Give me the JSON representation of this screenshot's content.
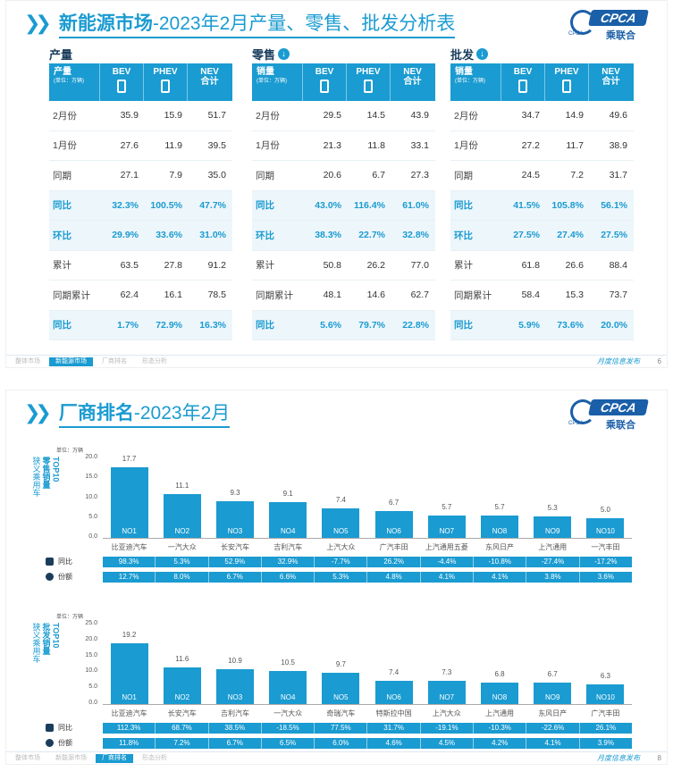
{
  "slide1": {
    "title_main": "新能源市场",
    "title_sub": "-2023年2月产量、零售、批发分析表",
    "logo": {
      "text": "CPCA",
      "cn": "乘联合",
      "small": "CPCA"
    },
    "col_headers": {
      "c0_main": "产量",
      "c0_unit": "(单位：万辆)",
      "bev": "BEV",
      "phev": "PHEV",
      "nev": "NEV",
      "nev2": "合计"
    },
    "sections": [
      {
        "name": "产量",
        "c0_main": "产量",
        "rows": [
          {
            "label": "2月份",
            "bev": "35.9",
            "phev": "15.9",
            "nev": "51.7",
            "hl": false
          },
          {
            "label": "1月份",
            "bev": "27.6",
            "phev": "11.9",
            "nev": "39.5",
            "hl": false
          },
          {
            "label": "同期",
            "bev": "27.1",
            "phev": "7.9",
            "nev": "35.0",
            "hl": false
          },
          {
            "label": "同比",
            "bev": "32.3%",
            "phev": "100.5%",
            "nev": "47.7%",
            "hl": true
          },
          {
            "label": "环比",
            "bev": "29.9%",
            "phev": "33.6%",
            "nev": "31.0%",
            "hl": true
          },
          {
            "label": "累计",
            "bev": "63.5",
            "phev": "27.8",
            "nev": "91.2",
            "hl": false
          },
          {
            "label": "同期累计",
            "bev": "62.4",
            "phev": "16.1",
            "nev": "78.5",
            "hl": false
          },
          {
            "label": "同比",
            "bev": "1.7%",
            "phev": "72.9%",
            "nev": "16.3%",
            "hl": true
          }
        ]
      },
      {
        "name": "零售",
        "c0_main": "销量",
        "rows": [
          {
            "label": "2月份",
            "bev": "29.5",
            "phev": "14.5",
            "nev": "43.9",
            "hl": false
          },
          {
            "label": "1月份",
            "bev": "21.3",
            "phev": "11.8",
            "nev": "33.1",
            "hl": false
          },
          {
            "label": "同期",
            "bev": "20.6",
            "phev": "6.7",
            "nev": "27.3",
            "hl": false
          },
          {
            "label": "同比",
            "bev": "43.0%",
            "phev": "116.4%",
            "nev": "61.0%",
            "hl": true
          },
          {
            "label": "环比",
            "bev": "38.3%",
            "phev": "22.7%",
            "nev": "32.8%",
            "hl": true
          },
          {
            "label": "累计",
            "bev": "50.8",
            "phev": "26.2",
            "nev": "77.0",
            "hl": false
          },
          {
            "label": "同期累计",
            "bev": "48.1",
            "phev": "14.6",
            "nev": "62.7",
            "hl": false
          },
          {
            "label": "同比",
            "bev": "5.6%",
            "phev": "79.7%",
            "nev": "22.8%",
            "hl": true
          }
        ]
      },
      {
        "name": "批发",
        "c0_main": "销量",
        "rows": [
          {
            "label": "2月份",
            "bev": "34.7",
            "phev": "14.9",
            "nev": "49.6",
            "hl": false
          },
          {
            "label": "1月份",
            "bev": "27.2",
            "phev": "11.7",
            "nev": "38.9",
            "hl": false
          },
          {
            "label": "同期",
            "bev": "24.5",
            "phev": "7.2",
            "nev": "31.7",
            "hl": false
          },
          {
            "label": "同比",
            "bev": "41.5%",
            "phev": "105.8%",
            "nev": "56.1%",
            "hl": true
          },
          {
            "label": "环比",
            "bev": "27.5%",
            "phev": "27.4%",
            "nev": "27.5%",
            "hl": true
          },
          {
            "label": "累计",
            "bev": "61.8",
            "phev": "26.6",
            "nev": "88.4",
            "hl": false
          },
          {
            "label": "同期累计",
            "bev": "58.4",
            "phev": "15.3",
            "nev": "73.7",
            "hl": false
          },
          {
            "label": "同比",
            "bev": "5.9%",
            "phev": "73.6%",
            "nev": "20.0%",
            "hl": true
          }
        ]
      }
    ],
    "footer_tabs": [
      "整体市场",
      "新能源市场",
      "厂商排名",
      "形态分析"
    ],
    "footer_active": 1,
    "footer_text": "月度信息发布",
    "page": "6"
  },
  "slide2": {
    "title_main": "厂商排名",
    "title_sub": "-2023年2月",
    "footer_tabs": [
      "整体市场",
      "新能源市场",
      "厂商排名",
      "形态分析"
    ],
    "footer_active": 2,
    "footer_text": "月度信息发布",
    "page": "8",
    "metric_labels": {
      "yoy": "同比",
      "share": "份额"
    },
    "unit": "单位：万辆"
  },
  "chart_data": [
    {
      "type": "bar",
      "title": "狭义乘用车零售销量TOP10",
      "ylim": [
        0,
        20
      ],
      "yticks": [
        "0.0",
        "5.0",
        "10.0",
        "15.0",
        "20.0"
      ],
      "categories": [
        "比亚迪汽车",
        "一汽大众",
        "长安汽车",
        "吉利汽车",
        "上汽大众",
        "广汽丰田",
        "上汽通用五菱",
        "东风日产",
        "上汽通用",
        "一汽丰田"
      ],
      "ranks": [
        "NO1",
        "NO2",
        "NO3",
        "NO4",
        "NO5",
        "NO6",
        "NO7",
        "NO8",
        "NO9",
        "NO10"
      ],
      "values": [
        17.7,
        11.1,
        9.3,
        9.1,
        7.4,
        6.7,
        5.7,
        5.7,
        5.3,
        5.0
      ],
      "value_labels": [
        "17.7",
        "11.1",
        "9.3",
        "9.1",
        "7.4",
        "6.7",
        "5.7",
        "5.7",
        "5.3",
        "5.0"
      ],
      "yoy": [
        "98.3%",
        "5.3%",
        "52.9%",
        "32.9%",
        "-7.7%",
        "26.2%",
        "-4.4%",
        "-10.8%",
        "-27.4%",
        "-17.2%"
      ],
      "share": [
        "12.7%",
        "8.0%",
        "6.7%",
        "6.6%",
        "5.3%",
        "4.8%",
        "4.1%",
        "4.1%",
        "3.8%",
        "3.6%"
      ],
      "ylabel_parts": [
        "狭义乘用车",
        "零售销量",
        "TOP10"
      ]
    },
    {
      "type": "bar",
      "title": "狭义乘用车批发销量TOP10",
      "ylim": [
        0,
        25
      ],
      "yticks": [
        "0.0",
        "5.0",
        "10.0",
        "15.0",
        "20.0",
        "25.0"
      ],
      "categories": [
        "比亚迪汽车",
        "长安汽车",
        "吉利汽车",
        "一汽大众",
        "奇瑞汽车",
        "特斯拉中国",
        "上汽大众",
        "上汽通用",
        "东风日产",
        "广汽丰田"
      ],
      "ranks": [
        "NO1",
        "NO2",
        "NO3",
        "NO4",
        "NO5",
        "NO6",
        "NO7",
        "NO8",
        "NO9",
        "NO10"
      ],
      "values": [
        19.2,
        11.6,
        10.9,
        10.5,
        9.7,
        7.4,
        7.3,
        6.8,
        6.7,
        6.3
      ],
      "value_labels": [
        "19.2",
        "11.6",
        "10.9",
        "10.5",
        "9.7",
        "7.4",
        "7.3",
        "6.8",
        "6.7",
        "6.3"
      ],
      "yoy": [
        "112.3%",
        "68.7%",
        "38.5%",
        "-18.5%",
        "77.5%",
        "31.7%",
        "-19.1%",
        "-10.3%",
        "-22.6%",
        "26.1%"
      ],
      "share": [
        "11.8%",
        "7.2%",
        "6.7%",
        "6.5%",
        "6.0%",
        "4.6%",
        "4.5%",
        "4.2%",
        "4.1%",
        "3.9%"
      ],
      "ylabel_parts": [
        "狭义乘用车",
        "批发销量",
        "TOP10"
      ]
    }
  ]
}
